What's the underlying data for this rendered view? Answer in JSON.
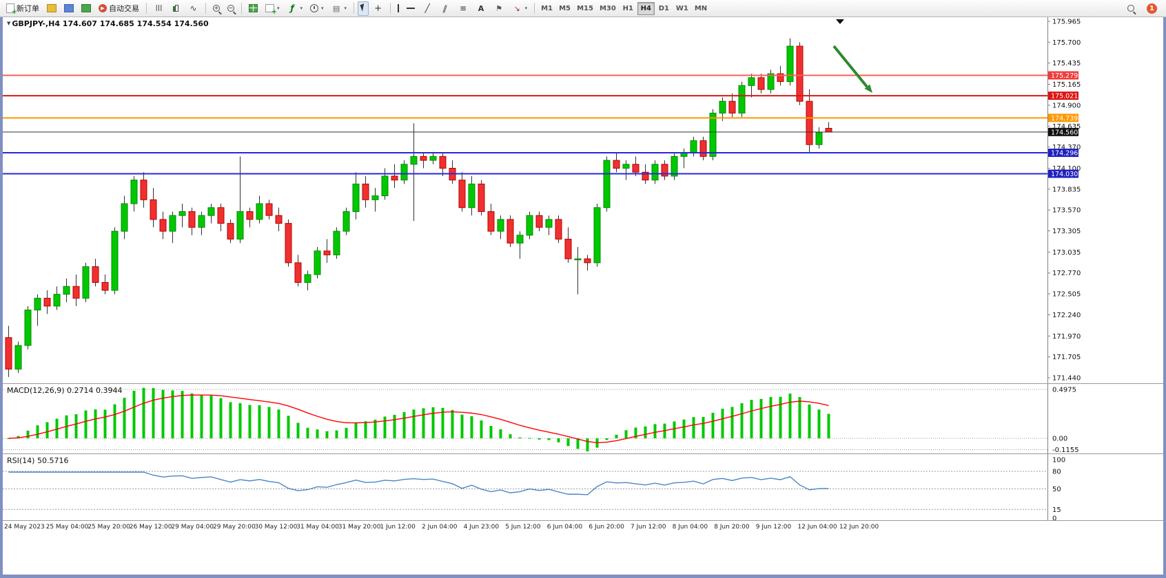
{
  "toolbar": {
    "new_order_label": "新订单",
    "autotrading_label": "自动交易",
    "active_timeframe": "H4",
    "groups": [
      {
        "name": "file",
        "items": [
          {
            "name": "new-order",
            "icon": "new-order-icon",
            "label": "新订单"
          },
          {
            "name": "profiles",
            "icon": "profiles-icon"
          },
          {
            "name": "market-watch",
            "icon": "market-watch-icon"
          },
          {
            "name": "navigator",
            "icon": "navigator-icon"
          },
          {
            "name": "autotrading",
            "icon": "autotrading-icon",
            "label": "自动交易"
          }
        ]
      },
      {
        "name": "chart-type",
        "items": [
          {
            "name": "bar-chart",
            "icon": "bar-chart-icon"
          },
          {
            "name": "candlestick-chart",
            "icon": "candlestick-icon"
          },
          {
            "name": "line-chart",
            "icon": "line-chart-icon"
          }
        ]
      },
      {
        "name": "zoom",
        "items": [
          {
            "name": "zoom-in",
            "icon": "zoom-in-icon"
          },
          {
            "name": "zoom-out",
            "icon": "zoom-out-icon"
          }
        ]
      },
      {
        "name": "windows",
        "items": [
          {
            "name": "tile-windows",
            "icon": "tile-windows-icon"
          },
          {
            "name": "new-chart",
            "icon": "new-chart-icon",
            "dropdown": true
          },
          {
            "name": "indicators",
            "icon": "indicators-icon",
            "dropdown": true
          },
          {
            "name": "periods",
            "icon": "periods-icon",
            "dropdown": true
          },
          {
            "name": "templates",
            "icon": "templates-icon",
            "dropdown": true
          }
        ]
      },
      {
        "name": "cursor",
        "items": [
          {
            "name": "cursor",
            "icon": "cursor-icon",
            "active": true
          },
          {
            "name": "crosshair",
            "icon": "crosshair-icon"
          }
        ]
      },
      {
        "name": "objects",
        "items": [
          {
            "name": "vertical-line",
            "icon": "vertical-line-icon"
          },
          {
            "name": "horizontal-line",
            "icon": "horizontal-line-icon"
          },
          {
            "name": "trendline",
            "icon": "trendline-icon"
          },
          {
            "name": "equidistant-channel",
            "icon": "channel-icon"
          },
          {
            "name": "fibonacci",
            "icon": "fibonacci-icon"
          },
          {
            "name": "text",
            "icon": "text-icon"
          },
          {
            "name": "text-label",
            "icon": "label-icon"
          },
          {
            "name": "arrows",
            "icon": "arrows-icon",
            "dropdown": true
          }
        ]
      },
      {
        "name": "timeframes",
        "items": [
          {
            "name": "tf-m1",
            "label": "M1"
          },
          {
            "name": "tf-m5",
            "label": "M5"
          },
          {
            "name": "tf-m15",
            "label": "M15"
          },
          {
            "name": "tf-m30",
            "label": "M30"
          },
          {
            "name": "tf-h1",
            "label": "H1"
          },
          {
            "name": "tf-h4",
            "label": "H4",
            "active": true
          },
          {
            "name": "tf-d1",
            "label": "D1"
          },
          {
            "name": "tf-w1",
            "label": "W1"
          },
          {
            "name": "tf-mn",
            "label": "MN"
          }
        ]
      }
    ],
    "right": [
      {
        "name": "search",
        "icon": "search-icon"
      },
      {
        "name": "notifications",
        "icon": "notification-badge-icon",
        "badge": "1"
      }
    ]
  },
  "chart_data": {
    "type": "candlestick",
    "symbol": "GBPJPY-",
    "timeframe": "H4",
    "symbol_ohlc_label": "GBPJPY-,H4 174.607 174.685 174.554 174.560",
    "ohlc_readout": {
      "open": "174.607",
      "high": "174.685",
      "low": "174.554",
      "close": "174.560"
    },
    "colors": {
      "up": "#00c800",
      "up_border": "#008a00",
      "down": "#f03030",
      "down_border": "#b80000",
      "wick": "#303030",
      "background": "#ffffff"
    },
    "price_axis": {
      "min": 171.44,
      "max": 175.965,
      "ticks": [
        "175.965",
        "175.700",
        "175.435",
        "175.165",
        "174.900",
        "174.635",
        "174.370",
        "174.100",
        "173.835",
        "173.570",
        "173.305",
        "173.035",
        "172.770",
        "172.505",
        "172.240",
        "171.970",
        "171.705",
        "171.440"
      ]
    },
    "levels": [
      {
        "price": 175.279,
        "label": "175.279",
        "color": "#ff5c5c",
        "tag": "#f23b3b",
        "width": 2
      },
      {
        "price": 175.021,
        "label": "175.021",
        "color": "#dd1515",
        "tag": "#dd1515",
        "width": 2
      },
      {
        "price": 174.739,
        "label": "174.739",
        "color": "#ff9800",
        "tag": "#ff9800",
        "width": 2
      },
      {
        "price": 174.56,
        "label": "174.560",
        "color": "#303030",
        "tag": "#111111",
        "width": 1,
        "role": "current-price"
      },
      {
        "price": 174.296,
        "label": "174.296",
        "color": "#2828d8",
        "tag": "#2020c0",
        "width": 2
      },
      {
        "price": 174.03,
        "label": "174.030",
        "color": "#2828d8",
        "tag": "#2020c0",
        "width": 2
      }
    ],
    "candles": [
      [
        171.95,
        172.1,
        171.45,
        171.55
      ],
      [
        171.55,
        171.9,
        171.5,
        171.85
      ],
      [
        171.85,
        172.35,
        171.8,
        172.3
      ],
      [
        172.3,
        172.5,
        172.1,
        172.45
      ],
      [
        172.45,
        172.55,
        172.25,
        172.35
      ],
      [
        172.35,
        172.6,
        172.3,
        172.5
      ],
      [
        172.5,
        172.7,
        172.4,
        172.6
      ],
      [
        172.6,
        172.75,
        172.35,
        172.45
      ],
      [
        172.45,
        172.9,
        172.4,
        172.85
      ],
      [
        172.85,
        172.95,
        172.6,
        172.65
      ],
      [
        172.65,
        172.75,
        172.5,
        172.55
      ],
      [
        172.55,
        173.35,
        172.5,
        173.3
      ],
      [
        173.3,
        173.75,
        173.2,
        173.65
      ],
      [
        173.65,
        174.0,
        173.55,
        173.95
      ],
      [
        173.95,
        174.05,
        173.6,
        173.7
      ],
      [
        173.7,
        173.85,
        173.35,
        173.45
      ],
      [
        173.45,
        173.55,
        173.2,
        173.3
      ],
      [
        173.3,
        173.55,
        173.15,
        173.5
      ],
      [
        173.5,
        173.65,
        173.35,
        173.55
      ],
      [
        173.55,
        173.6,
        173.25,
        173.35
      ],
      [
        173.35,
        173.55,
        173.25,
        173.5
      ],
      [
        173.5,
        173.65,
        173.4,
        173.6
      ],
      [
        173.6,
        173.65,
        173.3,
        173.4
      ],
      [
        173.4,
        173.45,
        173.15,
        173.2
      ],
      [
        173.2,
        174.25,
        173.15,
        173.55
      ],
      [
        173.55,
        173.6,
        173.35,
        173.45
      ],
      [
        173.45,
        173.75,
        173.4,
        173.65
      ],
      [
        173.65,
        173.7,
        173.45,
        173.5
      ],
      [
        173.5,
        173.6,
        173.3,
        173.4
      ],
      [
        173.4,
        173.45,
        172.85,
        172.9
      ],
      [
        172.9,
        173.0,
        172.6,
        172.65
      ],
      [
        172.65,
        172.8,
        172.55,
        172.75
      ],
      [
        172.75,
        173.1,
        172.7,
        173.05
      ],
      [
        173.05,
        173.2,
        172.9,
        173.0
      ],
      [
        173.0,
        173.35,
        172.95,
        173.3
      ],
      [
        173.3,
        173.6,
        173.25,
        173.55
      ],
      [
        173.55,
        174.05,
        173.45,
        173.9
      ],
      [
        173.9,
        174.0,
        173.6,
        173.7
      ],
      [
        173.7,
        173.85,
        173.55,
        173.75
      ],
      [
        173.75,
        174.1,
        173.7,
        174.0
      ],
      [
        174.0,
        174.15,
        173.85,
        173.95
      ],
      [
        173.95,
        174.2,
        173.9,
        174.15
      ],
      [
        174.15,
        174.67,
        173.43,
        174.25
      ],
      [
        174.25,
        174.3,
        174.1,
        174.2
      ],
      [
        174.2,
        174.3,
        174.15,
        174.25
      ],
      [
        174.25,
        174.3,
        174.0,
        174.1
      ],
      [
        174.1,
        174.2,
        173.9,
        173.95
      ],
      [
        173.95,
        174.05,
        173.55,
        173.6
      ],
      [
        173.6,
        174.0,
        173.5,
        173.9
      ],
      [
        173.9,
        173.95,
        173.5,
        173.55
      ],
      [
        173.55,
        173.65,
        173.25,
        173.3
      ],
      [
        173.3,
        173.5,
        173.2,
        173.45
      ],
      [
        173.45,
        173.5,
        173.1,
        173.15
      ],
      [
        173.15,
        173.3,
        172.95,
        173.25
      ],
      [
        173.25,
        173.55,
        173.2,
        173.5
      ],
      [
        173.5,
        173.55,
        173.3,
        173.35
      ],
      [
        173.35,
        173.5,
        173.25,
        173.45
      ],
      [
        173.45,
        173.5,
        173.15,
        173.2
      ],
      [
        173.2,
        173.35,
        172.9,
        172.95
      ],
      [
        172.95,
        173.1,
        172.5,
        172.95
      ],
      [
        172.95,
        173.0,
        172.8,
        172.9
      ],
      [
        172.9,
        173.65,
        172.85,
        173.6
      ],
      [
        173.6,
        174.25,
        173.55,
        174.2
      ],
      [
        174.2,
        174.3,
        174.05,
        174.1
      ],
      [
        174.1,
        174.2,
        173.95,
        174.15
      ],
      [
        174.15,
        174.25,
        174.0,
        174.05
      ],
      [
        174.05,
        174.15,
        173.9,
        173.95
      ],
      [
        173.95,
        174.2,
        173.9,
        174.15
      ],
      [
        174.15,
        174.2,
        173.95,
        174.0
      ],
      [
        174.0,
        174.3,
        173.95,
        174.25
      ],
      [
        174.25,
        174.35,
        174.1,
        174.3
      ],
      [
        174.3,
        174.5,
        174.25,
        174.45
      ],
      [
        174.45,
        174.5,
        174.2,
        174.25
      ],
      [
        174.25,
        174.85,
        174.2,
        174.8
      ],
      [
        174.8,
        175.0,
        174.7,
        174.95
      ],
      [
        174.95,
        175.05,
        174.75,
        174.8
      ],
      [
        174.8,
        175.2,
        174.75,
        175.15
      ],
      [
        175.15,
        175.3,
        175.0,
        175.25
      ],
      [
        175.25,
        175.3,
        175.05,
        175.1
      ],
      [
        175.1,
        175.35,
        175.05,
        175.3
      ],
      [
        175.3,
        175.4,
        175.15,
        175.2
      ],
      [
        175.2,
        175.75,
        175.15,
        175.65
      ],
      [
        175.65,
        175.7,
        174.9,
        174.95
      ],
      [
        174.95,
        175.1,
        174.3,
        174.4
      ],
      [
        174.4,
        174.62,
        174.35,
        174.55
      ],
      [
        174.607,
        174.685,
        174.554,
        174.56
      ]
    ],
    "time_axis": [
      "24 May 2023",
      "25 May 04:00",
      "25 May 20:00",
      "26 May 12:00",
      "29 May 04:00",
      "29 May 20:00",
      "30 May 12:00",
      "31 May 04:00",
      "31 May 20:00",
      "1 Jun 12:00",
      "2 Jun 04:00",
      "4 Jun 23:00",
      "5 Jun 12:00",
      "6 Jun 04:00",
      "6 Jun 20:00",
      "7 Jun 12:00",
      "8 Jun 04:00",
      "8 Jun 20:00",
      "9 Jun 12:00",
      "12 Jun 04:00",
      "12 Jun 20:00"
    ],
    "macd": {
      "name": "MACD(12,26,9)",
      "main_value": "0.2714",
      "signal_value": "0.3944",
      "params": [
        12,
        26,
        9
      ],
      "scale_ticks": [
        "0.4975",
        "0.00",
        "-0.1155"
      ],
      "scale_values": [
        0.4975,
        0,
        -0.1155
      ],
      "hist_color": "#00c800",
      "signal_color": "#ff0000"
    },
    "rsi": {
      "name": "RSI(14)",
      "value": "50.5716",
      "period": 14,
      "scale_ticks": [
        {
          "v": 100,
          "t": "100"
        },
        {
          "v": 80,
          "t": "80"
        },
        {
          "v": 50,
          "t": "50"
        },
        {
          "v": 15,
          "t": "15"
        },
        {
          "v": 0,
          "t": "0"
        }
      ],
      "levels": [
        80,
        50,
        15
      ],
      "color": "#4a86c8"
    },
    "annotation_arrow": {
      "color": "#2d8a2d"
    }
  }
}
